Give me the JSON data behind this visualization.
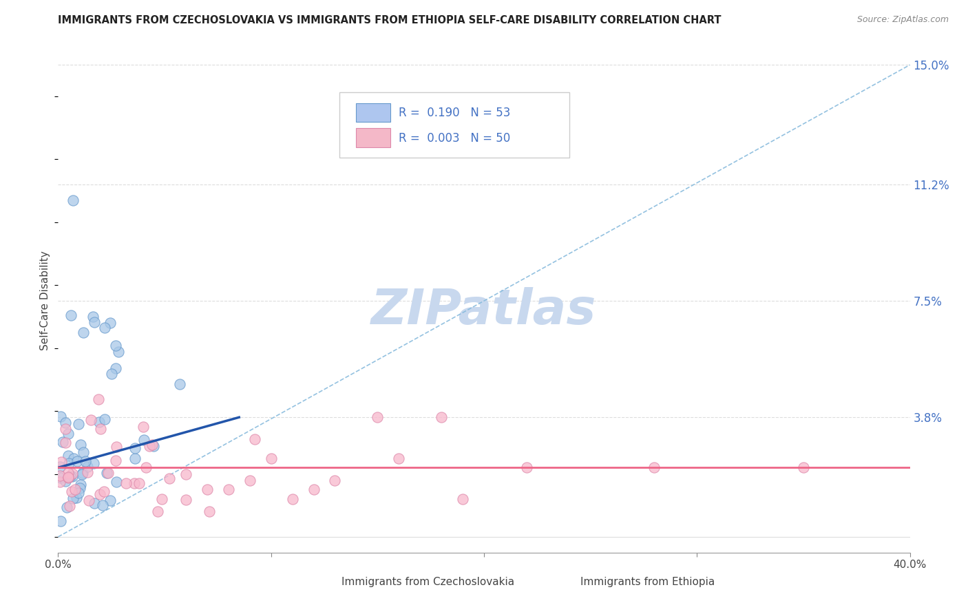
{
  "title": "IMMIGRANTS FROM CZECHOSLOVAKIA VS IMMIGRANTS FROM ETHIOPIA SELF-CARE DISABILITY CORRELATION CHART",
  "source": "Source: ZipAtlas.com",
  "ylabel": "Self-Care Disability",
  "xlim": [
    0.0,
    0.4
  ],
  "ylim": [
    -0.005,
    0.155
  ],
  "right_yticks": [
    0.0,
    0.038,
    0.075,
    0.112,
    0.15
  ],
  "right_yticklabels": [
    "",
    "3.8%",
    "7.5%",
    "11.2%",
    "15.0%"
  ],
  "watermark_text": "ZIPatlas",
  "watermark_color": "#c8d8ee",
  "series1_face": "#a8c8e8",
  "series1_edge": "#6699cc",
  "series2_face": "#f8b8cc",
  "series2_edge": "#dd88aa",
  "trendline1_color": "#2255aa",
  "trendline2_color": "#ee6688",
  "refline_color": "#88bbdd",
  "legend_box_color": "#aec6ef",
  "legend_box2_color": "#f4b8c8",
  "legend_text_color": "#4472c4",
  "right_axis_color": "#4472c4",
  "title_color": "#222222",
  "source_color": "#888888",
  "grid_color": "#dddddd",
  "background": "#ffffff"
}
